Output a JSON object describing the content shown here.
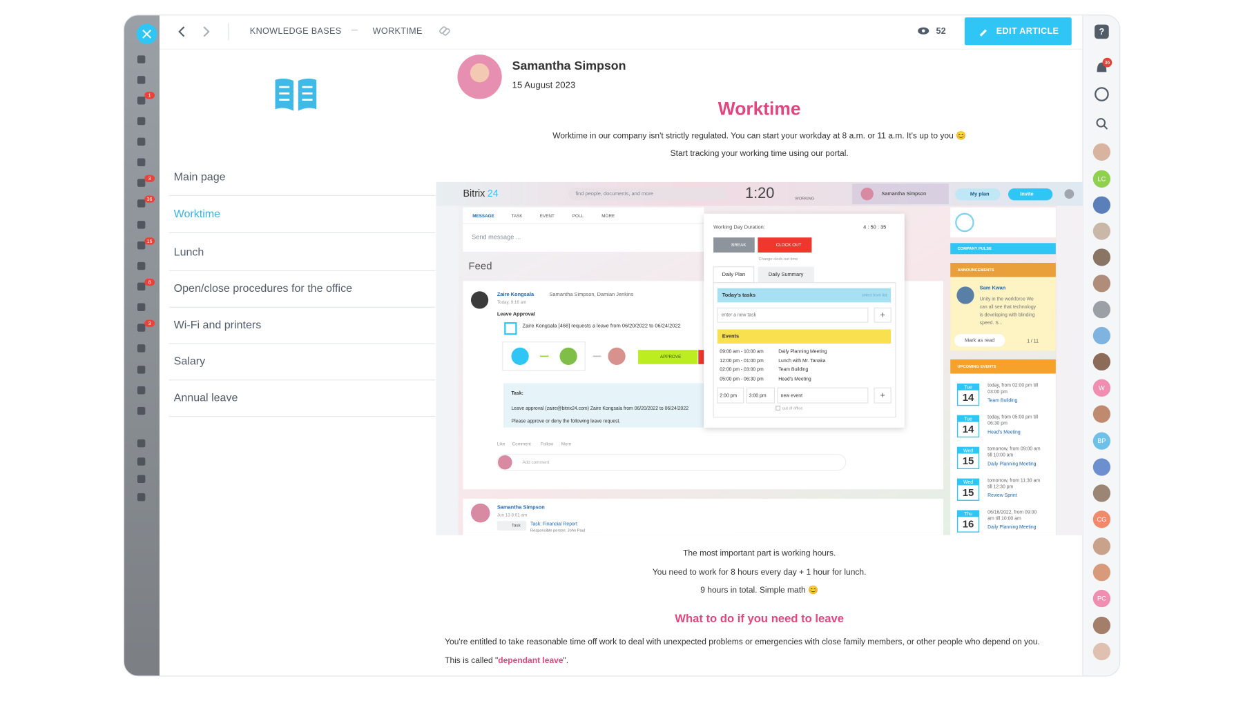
{
  "header": {
    "breadcrumb": [
      "KNOWLEDGE BASES",
      "WORKTIME"
    ],
    "views": 52,
    "edit_button": "EDIT ARTICLE"
  },
  "left_sidebar": {
    "badges": [
      1,
      3,
      36,
      16,
      8,
      3
    ]
  },
  "right_sidebar": {
    "notifications": 36,
    "avatars": [
      "LC",
      "W",
      "BP",
      "CG",
      "PC"
    ]
  },
  "nav": {
    "items": [
      "Main page",
      "Worktime",
      "Lunch",
      "Open/close procedures for the office",
      "Wi-Fi and printers",
      "Salary",
      "Annual leave"
    ],
    "active": 1
  },
  "article": {
    "author": "Samantha Simpson",
    "date": "15 August 2023",
    "title": "Worktime",
    "intro": [
      "Worktime in our company isn't strictly regulated. You can start your workday at 8 a.m. or 11 a.m. It's up to you 😊",
      "Start tracking your working time using our portal."
    ],
    "body": [
      "The most important part is working hours.",
      "You need to work for 8 hours every day + 1 hour for lunch.",
      "9 hours in total. Simple math 😊"
    ],
    "subheading": "What to do if you need to leave",
    "paragraph": "You're entitled to take reasonable time off work to deal with unexpected problems or emergencies with close family members, or other people who depend on you.",
    "note_prefix": "This is called \"",
    "note_link": "dependant leave",
    "note_suffix": "\"."
  },
  "screenshot": {
    "logo": "Bitrix",
    "logo_number": "24",
    "search": "find people, documents, and more",
    "clock": "1:20",
    "status": "WORKING",
    "user": "Samantha Simpson",
    "plan": "My plan",
    "invite": "Invite",
    "tabs": [
      "MESSAGE",
      "TASK",
      "EVENT",
      "POLL",
      "MORE"
    ],
    "composer": "Send message ...",
    "feed_title": "Feed",
    "post1": {
      "author": "Zaire Kongsala",
      "recipients": "Samantha Simpson, Damian Jenkins",
      "time": "Today, 9:16 am",
      "title": "Leave Approval",
      "text": "Zaire Kongsala [468] requests a leave from 06/20/2022 to 06/24/2022",
      "approve": "APPROVE",
      "task_label": "Task:",
      "task_text": "Leave approval (zaire@bitrix24.com) Zaire Kongsala from 06/20/2022 to 06/24/2022",
      "task_note": "Please approve or deny the following leave request.",
      "actions": [
        "Like",
        "Comment",
        "Follow",
        "More"
      ],
      "comment": "Add comment"
    },
    "post2": {
      "author": "Samantha Simpson",
      "time": "Jun 13 8:01 am",
      "tag": "Task",
      "task": "Task: Financial Report",
      "responsible": "Responsible person: John Paul"
    },
    "popup": {
      "duration_label": "Working Day Duration:",
      "duration": "4 : 50 : 35",
      "break": "BREAK",
      "clock_out": "CLOCK OUT",
      "change": "Change clock-out time",
      "tabs": [
        "Daily Plan",
        "Daily Summary"
      ],
      "tasks_title": "Today's tasks",
      "select": "select from list",
      "new_task": "enter a new task",
      "events_title": "Events",
      "events": [
        {
          "time": "09:00 am - 10:00 am",
          "name": "Daily Planning Meeting"
        },
        {
          "time": "12:00 pm - 01:00 pm",
          "name": "Lunch with Mr. Tanaka"
        },
        {
          "time": "02:00 pm - 03:00 pm",
          "name": "Team Building"
        },
        {
          "time": "05:00 pm - 06:30 pm",
          "name": "Head's Meeting"
        }
      ],
      "new_from": "2:00 pm",
      "new_to": "3:00 pm",
      "new_event": "new event",
      "out": "out of office"
    },
    "right": {
      "pulse": "COMPANY PULSE",
      "announcements": "ANNOUNCEMENTS",
      "ann_author": "Sam Kwan",
      "ann_text": [
        "Unity in the workforce We",
        "can all see that technology",
        "is developing with blinding",
        "speed. S..."
      ],
      "mark": "Mark as read",
      "pager": "1 / 11",
      "upcoming": "UPCOMING EVENTS",
      "events": [
        {
          "day": "Tue",
          "date": "14",
          "when": [
            "today, from 02:00 pm till",
            "03:00 pm"
          ],
          "name": "Team Building"
        },
        {
          "day": "Tue",
          "date": "14",
          "when": [
            "today, from 05:00 pm till",
            "06:30 pm"
          ],
          "name": "Head's Meeting"
        },
        {
          "day": "Wed",
          "date": "15",
          "when": [
            "tomorrow, from 09:00 am",
            "till 10:00 am"
          ],
          "name": "Daily Planning Meeting"
        },
        {
          "day": "Wed",
          "date": "15",
          "when": [
            "tomorrow, from 11:30 am",
            "till 12:30 pm"
          ],
          "name": "Review Sprint"
        },
        {
          "day": "Thu",
          "date": "16",
          "when": [
            "06/16/2022, from 09:00",
            "am till 10:00 am"
          ],
          "name": "Daily Planning Meeting"
        }
      ]
    }
  }
}
